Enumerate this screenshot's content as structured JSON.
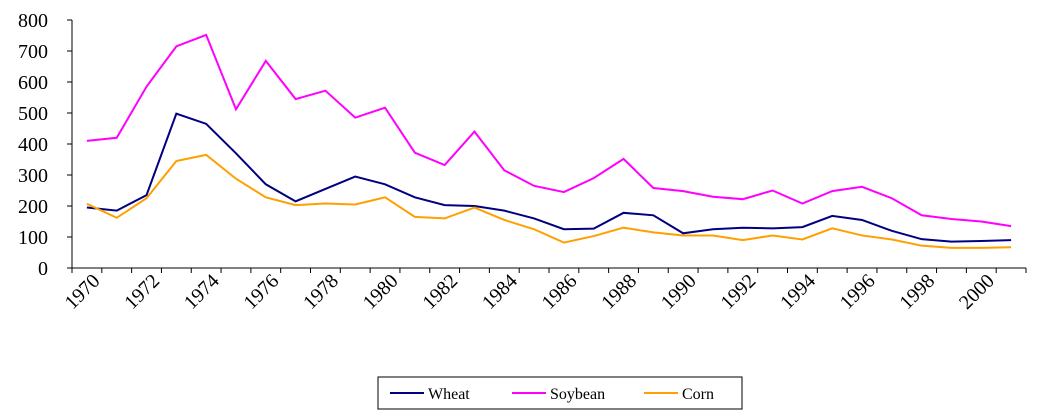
{
  "chart_data": {
    "type": "line",
    "categories": [
      "1970",
      null,
      "1972",
      null,
      "1974",
      null,
      "1976",
      null,
      "1978",
      null,
      "1980",
      null,
      "1982",
      null,
      "1984",
      null,
      "1986",
      null,
      "1988",
      null,
      "1990",
      null,
      "1992",
      null,
      "1994",
      null,
      "1996",
      null,
      "1998",
      null,
      "2000",
      null
    ],
    "series": [
      {
        "name": "Wheat",
        "color": "#000080",
        "values": [
          195,
          185,
          235,
          498,
          465,
          370,
          270,
          215,
          255,
          295,
          270,
          228,
          203,
          200,
          185,
          160,
          125,
          127,
          178,
          170,
          112,
          125,
          130,
          128,
          132,
          168,
          155,
          120,
          93,
          85,
          87,
          90
        ]
      },
      {
        "name": "Soybean",
        "color": "#ff00ff",
        "values": [
          410,
          420,
          585,
          715,
          752,
          512,
          668,
          545,
          572,
          485,
          517,
          372,
          332,
          440,
          315,
          265,
          245,
          290,
          352,
          258,
          248,
          230,
          222,
          250,
          208,
          248,
          262,
          225,
          170,
          158,
          150,
          135
        ]
      },
      {
        "name": "Corn",
        "color": "#ff9f00",
        "values": [
          207,
          162,
          225,
          345,
          365,
          288,
          228,
          203,
          208,
          205,
          228,
          165,
          160,
          195,
          155,
          125,
          82,
          103,
          130,
          115,
          105,
          105,
          90,
          105,
          92,
          128,
          105,
          92,
          72,
          65,
          65,
          67
        ]
      }
    ],
    "ylim": [
      0,
      800
    ],
    "yticks": [
      0,
      100,
      200,
      300,
      400,
      500,
      600,
      700,
      800
    ],
    "grid": false,
    "legend": "bottom"
  }
}
